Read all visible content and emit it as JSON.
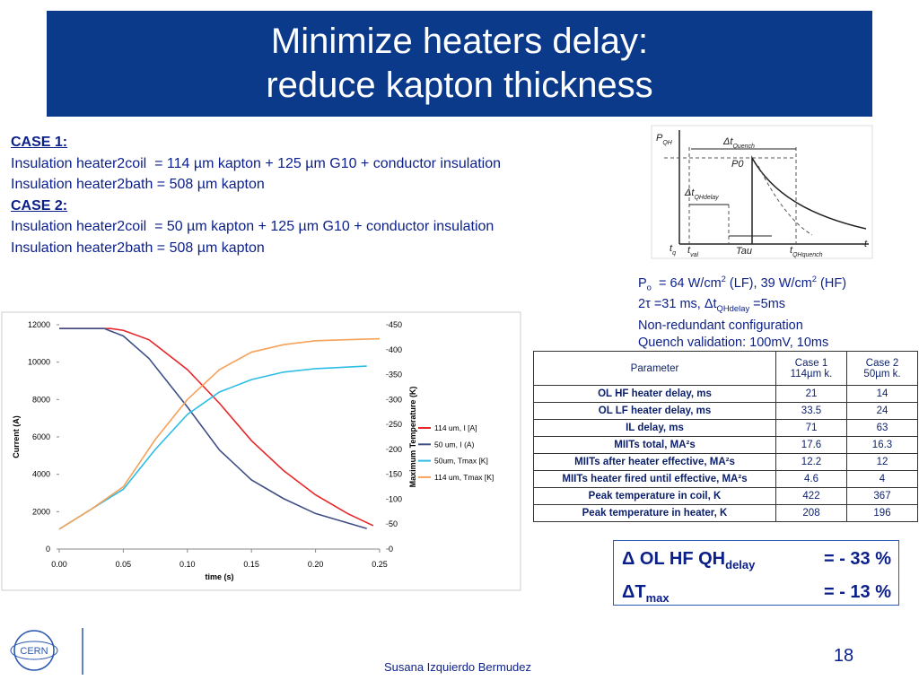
{
  "header": {
    "title": [
      "Minimize heaters delay:",
      "reduce kapton thickness"
    ]
  },
  "cases": [
    {
      "label": "CASE 1:",
      "lines": [
        "Insulation heater2coil  = 114 µm kapton + 125 µm G10 + conductor insulation",
        "Insulation heater2bath = 508 µm kapton"
      ]
    },
    {
      "label": "CASE 2:",
      "lines": [
        "Insulation heater2coil  = 50 µm kapton + 125 µm G10 + conductor insulation",
        "Insulation heater2bath = 508 µm kapton"
      ]
    }
  ],
  "parameters": [
    [
      {
        "t": "P"
      },
      {
        "t": "o",
        "s": "sub"
      },
      {
        "t": "  = 64 W/cm"
      },
      {
        "t": "2",
        "s": "sup"
      },
      {
        "t": " (LF), 39 W/cm"
      },
      {
        "t": "2",
        "s": "sup"
      },
      {
        "t": " (HF)"
      }
    ],
    [
      {
        "t": "2τ =31 ms, Δt"
      },
      {
        "t": "QHdelay",
        "s": "sub"
      },
      {
        "t": " =5ms"
      }
    ],
    [
      {
        "t": "Non-redundant configuration"
      }
    ],
    [
      {
        "t": "Quench validation: 100mV, 10ms"
      }
    ]
  ],
  "table": {
    "header": [
      [
        "Parameter"
      ],
      [
        "Case 1",
        "114µm k."
      ],
      [
        "Case 2",
        "50µm k."
      ]
    ],
    "rows": [
      [
        "OL HF heater delay, ms",
        21,
        14
      ],
      [
        "OL LF heater delay, ms",
        33.5,
        24
      ],
      [
        "IL delay, ms",
        71,
        63
      ],
      [
        "MIITs total, MA²s",
        17.6,
        16.3
      ],
      [
        "MIITs after heater effective, MA²s",
        12.2,
        12
      ],
      [
        "MIITs heater fired until effective, MA²s",
        4.6,
        4
      ],
      [
        "Peak temperature in coil, K",
        422,
        367
      ],
      [
        "Peak temperature in heater, K",
        208,
        196
      ]
    ]
  },
  "summary": [
    {
      "left": [
        {
          "t": "Δ OL HF QH"
        },
        {
          "t": "delay",
          "s": "sub"
        }
      ],
      "right": "= - 33 %"
    },
    {
      "left": [
        {
          "t": "ΔT"
        },
        {
          "t": "max",
          "s": "sub"
        }
      ],
      "right": "= - 13 %"
    }
  ],
  "diagram": {
    "labels": [
      [
        {
          "t": "P"
        },
        {
          "t": "QH",
          "s": "sub"
        }
      ],
      [
        {
          "t": "Δt"
        },
        {
          "t": "Quench",
          "s": "sub"
        }
      ],
      [
        {
          "t": "P0"
        }
      ],
      [
        {
          "t": "Δt"
        },
        {
          "t": "QHdelay",
          "s": "sub"
        }
      ],
      [
        {
          "t": "Tau"
        }
      ],
      [
        {
          "t": "t"
        },
        {
          "t": "q",
          "s": "sub"
        }
      ],
      [
        {
          "t": "t"
        },
        {
          "t": "val",
          "s": "sub"
        }
      ],
      [
        {
          "t": "t"
        },
        {
          "t": "QHquench",
          "s": "sub"
        }
      ],
      [
        {
          "t": "t"
        }
      ]
    ]
  },
  "footer": {
    "logo": "CERN",
    "author": "Susana Izquierdo Bermudez",
    "page": "18"
  },
  "chart": {
    "type": "line",
    "xlabel": "time (s)",
    "ylabel": "Current (A)",
    "y2label": "Maximum Temperature (K)",
    "xlim": [
      0,
      0.25
    ],
    "xticks": [
      {
        "value": 0,
        "label": "0.00"
      },
      {
        "value": 0.05,
        "label": "0.05"
      },
      {
        "value": 0.1,
        "label": "0.10"
      },
      {
        "value": 0.15,
        "label": "0.15"
      },
      {
        "value": 0.2,
        "label": "0.20"
      },
      {
        "value": 0.25,
        "label": "0.25"
      }
    ],
    "ylim": [
      0,
      12000
    ],
    "yticks": [
      0,
      2000,
      4000,
      6000,
      8000,
      10000,
      12000
    ],
    "y2lim": [
      0,
      450
    ],
    "y2ticks": [
      0,
      50,
      100,
      150,
      200,
      250,
      300,
      350,
      400,
      450
    ],
    "series": [
      {
        "name": "114 um, I [A]",
        "color": "#e8262a",
        "x": [
          0,
          0.025,
          0.04,
          0.05,
          0.07,
          0.1,
          0.125,
          0.15,
          0.175,
          0.2,
          0.225,
          0.245
        ],
        "values": [
          11800,
          11800,
          11800,
          11700,
          11200,
          9600,
          7800,
          5800,
          4200,
          2900,
          1900,
          1250
        ]
      },
      {
        "name": "50 um, I (A)",
        "color": "#3f4f86",
        "x": [
          0,
          0.025,
          0.035,
          0.05,
          0.07,
          0.1,
          0.125,
          0.15,
          0.175,
          0.2,
          0.225,
          0.24
        ],
        "values": [
          11800,
          11800,
          11800,
          11400,
          10200,
          7600,
          5300,
          3700,
          2700,
          1900,
          1400,
          1100
        ]
      },
      {
        "name": "50um, Tmax [K]",
        "color": "#2bbde6",
        "axis": "y2",
        "x": [
          0,
          0.025,
          0.05,
          0.075,
          0.1,
          0.125,
          0.15,
          0.175,
          0.2,
          0.24
        ],
        "values": [
          40,
          80,
          120,
          200,
          270,
          315,
          340,
          355,
          362,
          367
        ]
      },
      {
        "name": "114 um, Tmax [K]",
        "color": "#f5a25a",
        "axis": "y2",
        "x": [
          0,
          0.025,
          0.05,
          0.075,
          0.1,
          0.125,
          0.15,
          0.175,
          0.2,
          0.25
        ],
        "values": [
          40,
          80,
          125,
          220,
          300,
          360,
          395,
          410,
          418,
          422
        ]
      }
    ]
  }
}
